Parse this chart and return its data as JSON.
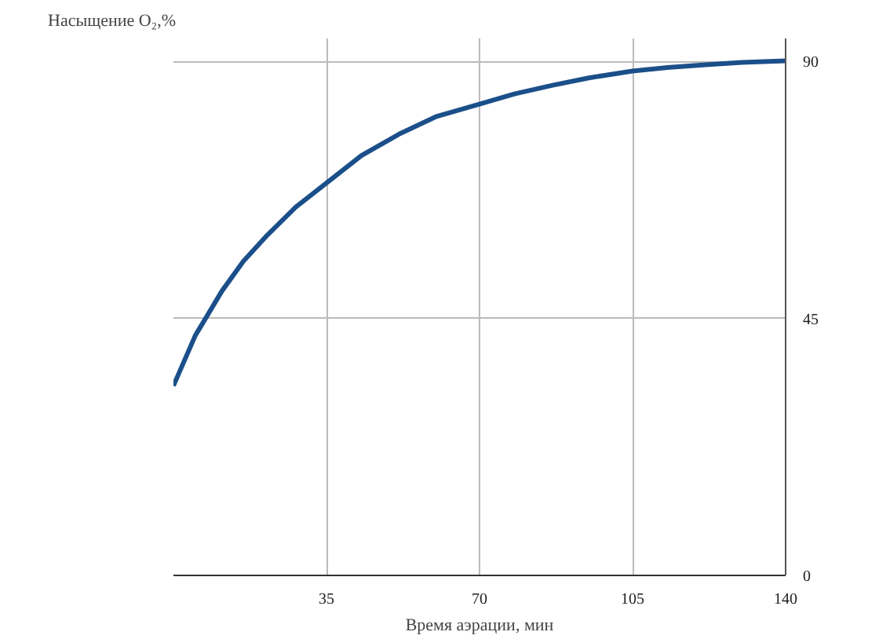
{
  "chart_data": {
    "type": "line",
    "xlabel": "Время аэрации, мин",
    "ylabel": "Насыщение O₂,%",
    "x": [
      0,
      5,
      11.1,
      16,
      21.5,
      28,
      35,
      43,
      51.7,
      60,
      70,
      78,
      86.7,
      95,
      105,
      113,
      121.7,
      130,
      140
    ],
    "series": [
      {
        "color": "#1b4f8a",
        "values": [
          33.2,
          42,
          49.8,
          55,
          59.6,
          64.5,
          68.7,
          73.5,
          77.3,
          80.3,
          82.5,
          84.3,
          85.8,
          87.1,
          88.3,
          88.9,
          89.4,
          89.8,
          90.1
        ]
      }
    ],
    "xlim": [
      0,
      140
    ],
    "xticks": [
      35,
      70,
      105,
      140
    ],
    "ylim": [
      0,
      94
    ],
    "yticks": [
      0,
      45,
      90
    ],
    "grid": true,
    "marker": "none",
    "line_style": "solid"
  }
}
